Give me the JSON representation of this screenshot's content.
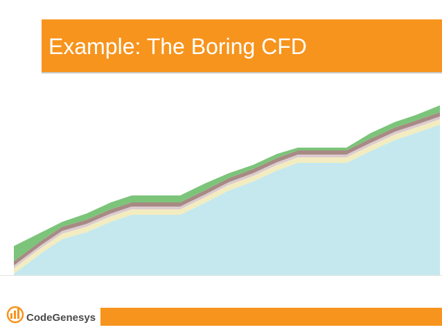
{
  "header": {
    "title": "Example: The Boring CFD"
  },
  "logo": {
    "text": "CodeGenesys"
  },
  "chart_data": {
    "type": "area",
    "stacked": true,
    "x": [
      0,
      40,
      70,
      105,
      140,
      170,
      240,
      275,
      310,
      345,
      380,
      410,
      480,
      515,
      550,
      580,
      615
    ],
    "xlim": [
      0,
      615
    ],
    "ylim": [
      0,
      250
    ],
    "series": [
      {
        "color": "#c4e8ee",
        "values": [
          2,
          32,
          52,
          62,
          77,
          87,
          87,
          104,
          122,
          135,
          151,
          162,
          162,
          179,
          195,
          205,
          217
        ]
      },
      {
        "color": "#f2ecc0",
        "values": [
          8,
          8,
          8,
          8,
          8,
          8,
          8,
          8,
          8,
          8,
          8,
          8,
          8,
          8,
          8,
          8,
          8
        ]
      },
      {
        "color": "#dccbd0",
        "values": [
          4,
          4,
          4,
          4,
          4,
          4,
          4,
          4,
          4,
          4,
          4,
          4,
          4,
          4,
          4,
          4,
          4
        ]
      },
      {
        "color": "#a88a84",
        "values": [
          6,
          6,
          6,
          6,
          6,
          6,
          6,
          6,
          6,
          6,
          6,
          6,
          6,
          6,
          6,
          6,
          6
        ]
      },
      {
        "color": "#7cc47a",
        "values": [
          22,
          12,
          7,
          9,
          10,
          10,
          10,
          10,
          7,
          6,
          6,
          4,
          4,
          8,
          8,
          8,
          10
        ]
      }
    ]
  }
}
